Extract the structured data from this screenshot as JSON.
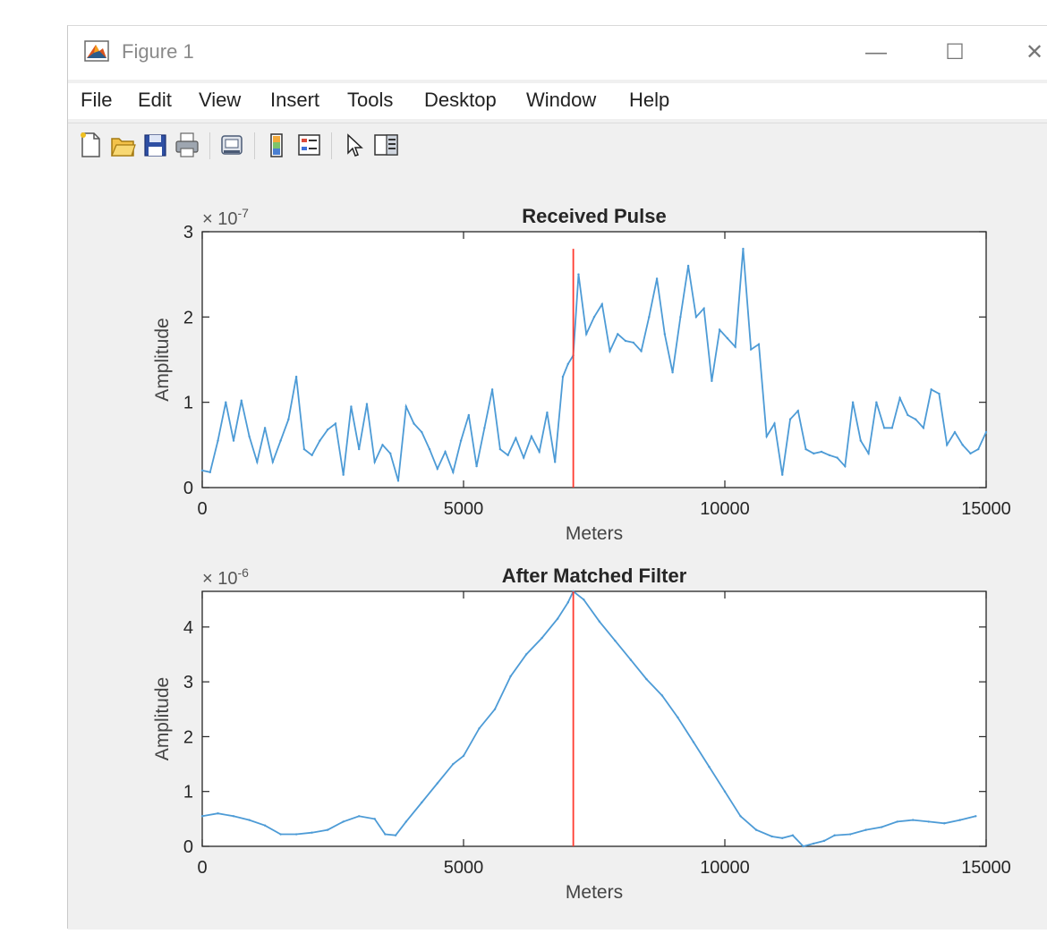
{
  "window": {
    "title": "Figure 1",
    "minimize_glyph": "—",
    "maximize_glyph": "☐",
    "close_glyph": "✕"
  },
  "menu": [
    "File",
    "Edit",
    "View",
    "Insert",
    "Tools",
    "Desktop",
    "Window",
    "Help"
  ],
  "toolbar_icons": [
    "new-figure-icon",
    "open-file-icon",
    "save-icon",
    "print-icon",
    "link-plot-icon",
    "colorbar-icon",
    "legend-icon",
    "pointer-icon",
    "property-editor-icon"
  ],
  "colors": {
    "series": "#4d9bd6",
    "marker_line": "#ff3b30",
    "axes_bg": "#ffffff",
    "figure_bg": "#f0f0f0"
  },
  "chart_data": [
    {
      "type": "line",
      "title": "Received Pulse",
      "xlabel": "Meters",
      "ylabel": "Amplitude",
      "exponent_label": "× 10",
      "exponent_power": "-7",
      "xlim": [
        0,
        15000
      ],
      "ylim": [
        0,
        3
      ],
      "xticks": [
        0,
        5000,
        10000,
        15000
      ],
      "yticks": [
        0,
        1,
        2,
        3
      ],
      "marker_x": 7100,
      "series": [
        {
          "x": [
            0,
            150,
            300,
            450,
            600,
            750,
            900,
            1050,
            1200,
            1350,
            1500,
            1650,
            1800,
            1950,
            2100,
            2250,
            2400,
            2550,
            2700,
            2850,
            3000,
            3150,
            3300,
            3450,
            3600,
            3750,
            3900,
            4050,
            4200,
            4350,
            4500,
            4650,
            4800,
            4950,
            5100,
            5250,
            5400,
            5550,
            5700,
            5850,
            6000,
            6150,
            6300,
            6450,
            6600,
            6750,
            6900,
            7000,
            7100,
            7200,
            7350,
            7500,
            7650,
            7800,
            7950,
            8100,
            8250,
            8400,
            8550,
            8700,
            8850,
            9000,
            9150,
            9300,
            9450,
            9600,
            9750,
            9900,
            10050,
            10200,
            10350,
            10500,
            10650,
            10800,
            10950,
            11100,
            11250,
            11400,
            11550,
            11700,
            11850,
            12000,
            12150,
            12300,
            12450,
            12600,
            12750,
            12900,
            13050,
            13200,
            13350,
            13500,
            13650,
            13800,
            13950,
            14100,
            14250,
            14400,
            14550,
            14700,
            14850,
            15000
          ],
          "values": [
            0.2,
            0.18,
            0.55,
            1.0,
            0.55,
            1.02,
            0.6,
            0.3,
            0.7,
            0.3,
            0.55,
            0.8,
            1.3,
            0.45,
            0.38,
            0.55,
            0.68,
            0.75,
            0.15,
            0.95,
            0.45,
            0.98,
            0.3,
            0.5,
            0.4,
            0.08,
            0.95,
            0.75,
            0.65,
            0.45,
            0.22,
            0.42,
            0.18,
            0.55,
            0.85,
            0.25,
            0.7,
            1.15,
            0.45,
            0.38,
            0.58,
            0.35,
            0.6,
            0.42,
            0.88,
            0.3,
            1.3,
            1.45,
            1.55,
            2.5,
            1.8,
            2.0,
            2.15,
            1.6,
            1.8,
            1.72,
            1.7,
            1.6,
            2.0,
            2.45,
            1.8,
            1.35,
            2.0,
            2.6,
            2.0,
            2.1,
            1.25,
            1.85,
            1.75,
            1.65,
            2.8,
            1.62,
            1.68,
            0.6,
            0.75,
            0.15,
            0.8,
            0.9,
            0.45,
            0.4,
            0.42,
            0.38,
            0.35,
            0.25,
            1.0,
            0.55,
            0.4,
            1.0,
            0.7,
            0.7,
            1.05,
            0.85,
            0.8,
            0.7,
            1.15,
            1.1,
            0.5,
            0.65,
            0.5,
            0.4,
            0.45,
            0.65
          ]
        }
      ]
    },
    {
      "type": "line",
      "title": "After Matched Filter",
      "xlabel": "Meters",
      "ylabel": "Amplitude",
      "exponent_label": "× 10",
      "exponent_power": "-6",
      "xlim": [
        0,
        15000
      ],
      "ylim": [
        0,
        4.65
      ],
      "xticks": [
        0,
        5000,
        10000,
        15000
      ],
      "yticks": [
        0,
        1,
        2,
        3,
        4
      ],
      "marker_x": 7100,
      "series": [
        {
          "x": [
            0,
            300,
            600,
            900,
            1200,
            1500,
            1800,
            2100,
            2400,
            2700,
            3000,
            3300,
            3500,
            3700,
            3900,
            4200,
            4500,
            4800,
            5000,
            5300,
            5600,
            5900,
            6200,
            6500,
            6800,
            7000,
            7100,
            7300,
            7600,
            7900,
            8200,
            8500,
            8800,
            9100,
            9400,
            9700,
            10000,
            10300,
            10600,
            10900,
            11100,
            11300,
            11500,
            11700,
            11900,
            12100,
            12400,
            12700,
            13000,
            13300,
            13600,
            13900,
            14200,
            14500,
            14800
          ],
          "values": [
            0.55,
            0.6,
            0.55,
            0.48,
            0.38,
            0.22,
            0.22,
            0.25,
            0.3,
            0.45,
            0.55,
            0.5,
            0.22,
            0.2,
            0.45,
            0.8,
            1.15,
            1.5,
            1.65,
            2.15,
            2.5,
            3.1,
            3.5,
            3.8,
            4.15,
            4.45,
            4.65,
            4.5,
            4.1,
            3.75,
            3.4,
            3.05,
            2.75,
            2.35,
            1.9,
            1.45,
            1.0,
            0.55,
            0.3,
            0.18,
            0.15,
            0.2,
            0.0,
            0.05,
            0.1,
            0.2,
            0.22,
            0.3,
            0.35,
            0.45,
            0.48,
            0.45,
            0.42,
            0.48,
            0.55
          ]
        }
      ]
    }
  ]
}
